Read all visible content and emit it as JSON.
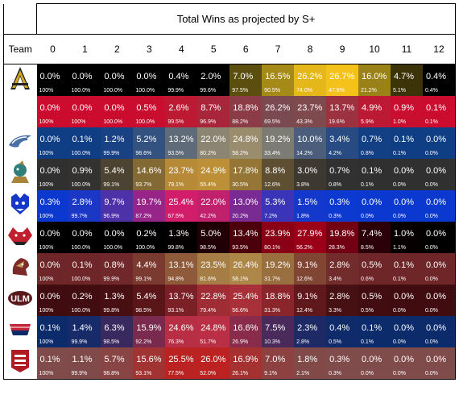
{
  "chart_data": {
    "type": "table",
    "title": "Total Wins as projected by S+",
    "team_header": "Team",
    "columns": [
      "0",
      "1",
      "2",
      "3",
      "4",
      "5",
      "6",
      "7",
      "8",
      "9",
      "10",
      "11",
      "12"
    ],
    "rows": [
      {
        "team_logo": "app-state-logo",
        "pct": [
          "0.0%",
          "0.0%",
          "0.0%",
          "0.0%",
          "0.4%",
          "2.0%",
          "7.0%",
          "16.5%",
          "26.2%",
          "26.7%",
          "16.0%",
          "4.7%",
          "0.4%"
        ],
        "cum": [
          "100%",
          "100.0%",
          "100.0%",
          "100.0%",
          "99.9%",
          "99.6%",
          "97.5%",
          "90.5%",
          "74.0%",
          "47.8%",
          "21.2%",
          "5.1%",
          "0.4%"
        ],
        "colors": [
          "#000000",
          "#000000",
          "#000000",
          "#000000",
          "#000000",
          "#000000",
          "#5c4e0f",
          "#a58a18",
          "#e6b71a",
          "#f5c21b",
          "#9a8218",
          "#3d3308",
          "#000000"
        ]
      },
      {
        "team_logo": "arkansas-state-logo",
        "pct": [
          "0.0%",
          "0.0%",
          "0.0%",
          "0.5%",
          "2.6%",
          "8.7%",
          "18.8%",
          "26.2%",
          "23.7%",
          "13.7%",
          "4.9%",
          "0.9%",
          "0.1%"
        ],
        "cum": [
          "100%",
          "100%",
          "100.0%",
          "100.0%",
          "99.5%",
          "96.9%",
          "88.2%",
          "69.5%",
          "43.3%",
          "19.6%",
          "5.9%",
          "1.0%",
          "0.1%"
        ],
        "colors": [
          "#cc0c2f",
          "#cc0c2f",
          "#cc0c2f",
          "#c90d2f",
          "#bd1933",
          "#a8253a",
          "#8c3c46",
          "#7a4a50",
          "#7f4a4e",
          "#9c3140",
          "#bc1a34",
          "#c90e30",
          "#cc0c2f"
        ]
      },
      {
        "team_logo": "georgia-southern-logo",
        "pct": [
          "0.0%",
          "0.1%",
          "1.2%",
          "5.2%",
          "13.2%",
          "22.0%",
          "24.8%",
          "19.2%",
          "10.0%",
          "3.4%",
          "0.7%",
          "0.1%",
          "0.0%"
        ],
        "cum": [
          "100%",
          "100.0%",
          "99.9%",
          "98.6%",
          "93.5%",
          "80.2%",
          "58.2%",
          "33.4%",
          "14.2%",
          "4.2%",
          "0.8%",
          "0.1%",
          "0.0%"
        ],
        "colors": [
          "#0f3e84",
          "#0f3e84",
          "#184283",
          "#335280",
          "#606b79",
          "#8c8571",
          "#9a8d6e",
          "#7c7c74",
          "#4b5f7c",
          "#274b82",
          "#133f84",
          "#0f3e84",
          "#0f3e84"
        ]
      },
      {
        "team_logo": "coastal-carolina-logo",
        "pct": [
          "0.0%",
          "0.9%",
          "5.4%",
          "14.6%",
          "23.7%",
          "24.9%",
          "17.8%",
          "8.8%",
          "3.0%",
          "0.7%",
          "0.1%",
          "0.0%",
          "0.0%"
        ],
        "cum": [
          "100%",
          "100.0%",
          "99.1%",
          "93.7%",
          "79.1%",
          "55.4%",
          "30.5%",
          "12.6%",
          "3.8%",
          "0.8%",
          "0.1%",
          "0.0%",
          "0.0%"
        ],
        "colors": [
          "#303030",
          "#333231",
          "#4c4332",
          "#836a35",
          "#b68a37",
          "#bd9037",
          "#957636",
          "#5e4f32",
          "#3d3931",
          "#323131",
          "#303030",
          "#303030",
          "#303030"
        ]
      },
      {
        "team_logo": "georgia-state-logo",
        "pct": [
          "0.3%",
          "2.8%",
          "9.7%",
          "19.7%",
          "25.4%",
          "22.0%",
          "13.0%",
          "5.3%",
          "1.5%",
          "0.3%",
          "0.0%",
          "0.0%",
          "0.0%"
        ],
        "cum": [
          "100%",
          "99.7%",
          "96.9%",
          "87.2%",
          "67.5%",
          "42.2%",
          "20.2%",
          "7.2%",
          "1.8%",
          "0.3%",
          "0.0%",
          "0.0%",
          "0.0%"
        ],
        "colors": [
          "#0b39d0",
          "#1a37c6",
          "#4c31a8",
          "#972589",
          "#d21e6a",
          "#c0206c",
          "#7a2a93",
          "#3a34b8",
          "#1538cc",
          "#0c39d0",
          "#0b39d0",
          "#0b39d0",
          "#0b39d0"
        ]
      },
      {
        "team_logo": "louisiana-monroe-logo",
        "pct": [
          "0.0%",
          "0.0%",
          "0.0%",
          "0.2%",
          "1.3%",
          "5.0%",
          "13.4%",
          "23.9%",
          "27.9%",
          "19.8%",
          "7.4%",
          "1.0%",
          "0.0%"
        ],
        "cum": [
          "100%",
          "100.0%",
          "100.0%",
          "100.0%",
          "99.8%",
          "98.5%",
          "93.5%",
          "80.1%",
          "56.2%",
          "28.3%",
          "8.5%",
          "1.1%",
          "0.0%"
        ],
        "colors": [
          "#000000",
          "#000000",
          "#000000",
          "#000000",
          "#050000",
          "#200005",
          "#4c000c",
          "#8a0014",
          "#9c0018",
          "#700012",
          "#2c0008",
          "#060000",
          "#000000"
        ]
      },
      {
        "team_logo": "texas-state-logo",
        "pct": [
          "0.0%",
          "0.1%",
          "0.8%",
          "4.4%",
          "13.1%",
          "23.5%",
          "26.4%",
          "19.2%",
          "9.1%",
          "2.8%",
          "0.5%",
          "0.1%",
          "0.0%"
        ],
        "cum": [
          "100%",
          "100.0%",
          "99.9%",
          "99.1%",
          "94.8%",
          "81.6%",
          "58.1%",
          "31.7%",
          "12.6%",
          "3.4%",
          "0.6%",
          "0.1%",
          "0.0%"
        ],
        "colors": [
          "#6e2628",
          "#6e2628",
          "#70282a",
          "#7b3a30",
          "#8f5a3a",
          "#a67d45",
          "#ad8748",
          "#9a6f40",
          "#814534",
          "#722c2b",
          "#6e2628",
          "#6e2628",
          "#6e2628"
        ]
      },
      {
        "team_logo": "louisiana-lafayette-logo",
        "pct": [
          "0.0%",
          "0.2%",
          "1.3%",
          "5.4%",
          "13.7%",
          "22.8%",
          "25.4%",
          "18.8%",
          "9.1%",
          "2.8%",
          "0.5%",
          "0.0%",
          "0.0%"
        ],
        "cum": [
          "100%",
          "100.0%",
          "99.8%",
          "98.5%",
          "93.1%",
          "79.4%",
          "56.6%",
          "31.3%",
          "12.4%",
          "3.3%",
          "0.5%",
          "0.0%",
          "0.0%"
        ],
        "colors": [
          "#400c0f",
          "#410d10",
          "#470f12",
          "#5a1519",
          "#7c2027",
          "#a02d35",
          "#a93038",
          "#8a252c",
          "#5f181c",
          "#471013",
          "#410d10",
          "#400c0f",
          "#400c0f"
        ]
      },
      {
        "team_logo": "south-alabama-logo",
        "pct": [
          "0.1%",
          "1.4%",
          "6.3%",
          "15.9%",
          "24.6%",
          "24.8%",
          "16.6%",
          "7.5%",
          "2.3%",
          "0.4%",
          "0.1%",
          "0.0%",
          "0.0%"
        ],
        "cum": [
          "100%",
          "99.9%",
          "98.5%",
          "92.2%",
          "76.3%",
          "51.7%",
          "26.9%",
          "10.3%",
          "2.8%",
          "0.5%",
          "0.1%",
          "0.0%",
          "0.0%"
        ],
        "colors": [
          "#0c2b6b",
          "#162b68",
          "#38295e",
          "#7a2a4f",
          "#b82f45",
          "#ba2f45",
          "#8a2b4c",
          "#4a2a5a",
          "#1e2a66",
          "#0f2b6a",
          "#0c2b6b",
          "#0c2b6b",
          "#0c2b6b"
        ]
      },
      {
        "team_logo": "troy-logo",
        "pct": [
          "0.1%",
          "1.1%",
          "5.7%",
          "15.6%",
          "25.5%",
          "26.0%",
          "16.9%",
          "7.0%",
          "1.8%",
          "0.3%",
          "0.0%",
          "0.0%",
          "0.0%"
        ],
        "cum": [
          "100%",
          "99.9%",
          "98.8%",
          "93.1%",
          "77.5%",
          "52.0%",
          "26.1%",
          "9.1%",
          "2.1%",
          "0.3%",
          "0.0%",
          "0.0%",
          "0.0%"
        ],
        "colors": [
          "#7f4b4b",
          "#804a4a",
          "#894444",
          "#a23333",
          "#bb2323",
          "#bd2222",
          "#a53131",
          "#8e4141",
          "#824949",
          "#7f4b4b",
          "#7f4b4b",
          "#7f4b4b",
          "#7f4b4b"
        ]
      }
    ]
  }
}
